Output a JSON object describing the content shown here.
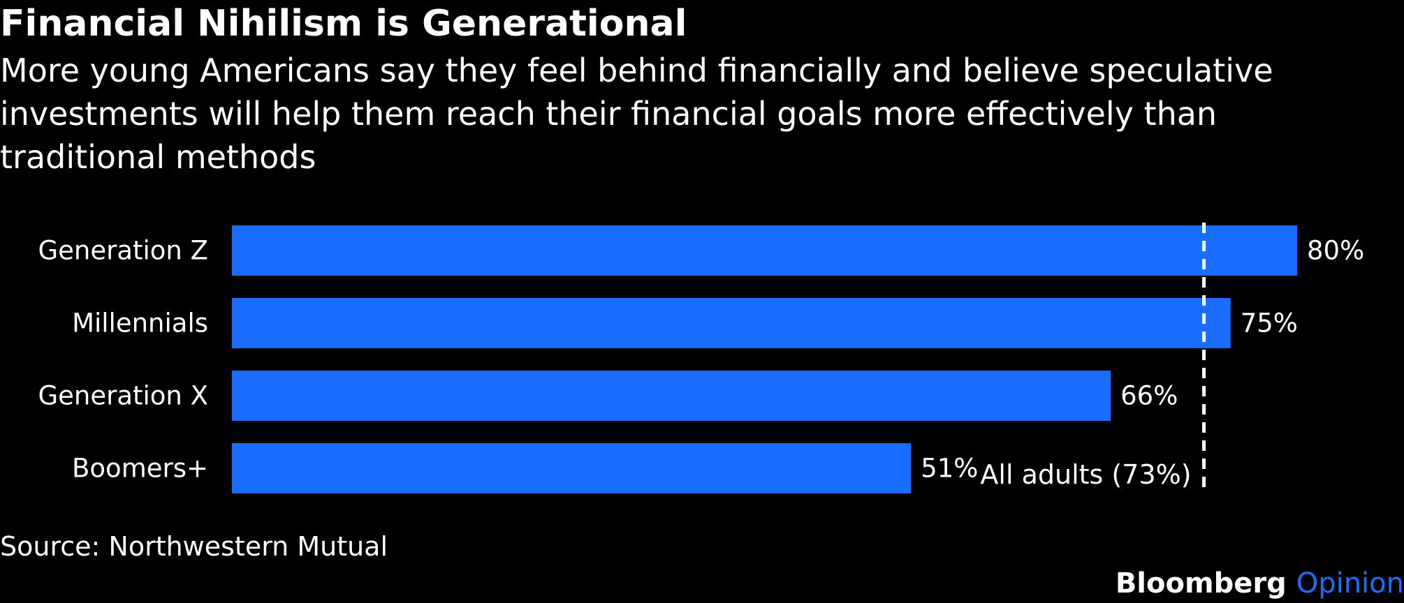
{
  "header": {
    "title": "Financial Nihilism is Generational",
    "subtitle": "More young Americans say they feel behind financially and believe speculative investments will help them reach their financial goals more effectively than traditional methods"
  },
  "chart_data": {
    "type": "bar",
    "orientation": "horizontal",
    "categories": [
      "Generation Z",
      "Millennials",
      "Generation X",
      "Boomers+"
    ],
    "values": [
      80,
      75,
      66,
      51
    ],
    "value_labels": [
      "80%",
      "75%",
      "66%",
      "51%"
    ],
    "value_unit": "%",
    "xlim": [
      0,
      80
    ],
    "grid": false,
    "bar_color": "#1a6dff",
    "reference_line": {
      "value": 73,
      "label": "All adults (73%)",
      "style": "dashed",
      "color": "#ffffff"
    }
  },
  "footer": {
    "source": "Source: Northwestern Mutual",
    "brand": "Bloomberg",
    "brand_suffix": "Opinion",
    "brand_suffix_color": "#1a6dff"
  }
}
